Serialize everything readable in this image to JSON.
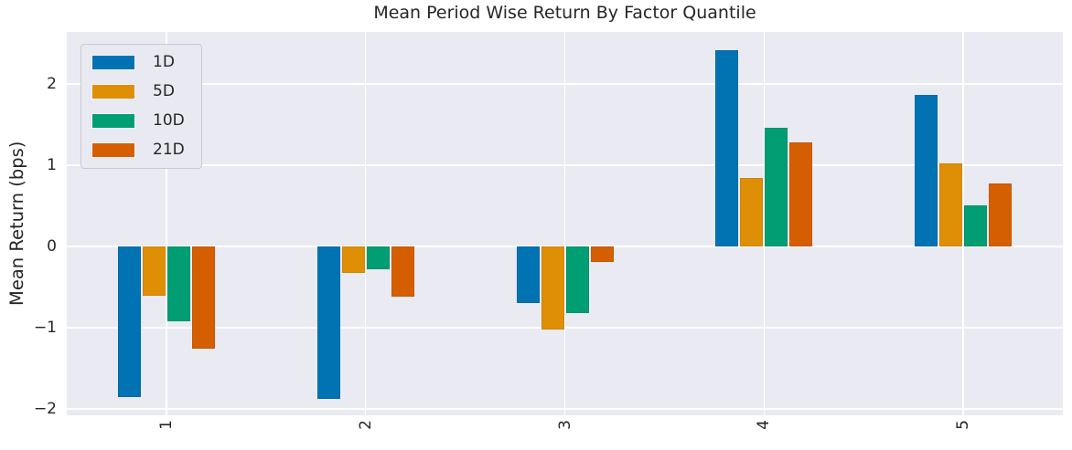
{
  "chart_data": {
    "type": "bar",
    "title": "Mean Period Wise Return By Factor Quantile",
    "xlabel": "",
    "ylabel": "Mean Return (bps)",
    "categories": [
      "1",
      "2",
      "3",
      "4",
      "5"
    ],
    "series": [
      {
        "name": "1D",
        "color": "#0173b2",
        "values": [
          -1.86,
          -1.88,
          -0.7,
          2.41,
          1.86
        ]
      },
      {
        "name": "5D",
        "color": "#de8f05",
        "values": [
          -0.61,
          -0.33,
          -1.02,
          0.84,
          1.02
        ]
      },
      {
        "name": "10D",
        "color": "#029e73",
        "values": [
          -0.92,
          -0.28,
          -0.82,
          1.46,
          0.51
        ]
      },
      {
        "name": "21D",
        "color": "#d55e00",
        "values": [
          -1.26,
          -0.62,
          -0.19,
          1.28,
          0.78
        ]
      }
    ],
    "yticks": [
      2,
      1,
      0,
      -1,
      -2
    ],
    "ylim": [
      -2.08,
      2.64
    ],
    "grid": true,
    "legend_position": "upper left",
    "x_tick_rotation": 90
  },
  "colors": {
    "plot_background": "#eaeaf2",
    "gridline": "#ffffff",
    "text": "#262626",
    "legend_background": "#e9e9f1",
    "legend_border": "#c9c9cf"
  }
}
